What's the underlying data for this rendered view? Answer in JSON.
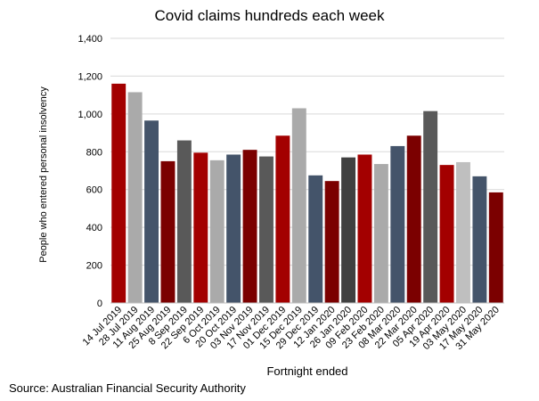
{
  "chart_data": {
    "type": "bar",
    "title": "Covid claims hundreds each week",
    "xlabel": "Fortnight ended",
    "ylabel": "People who entered personal insolvency",
    "ylim": [
      0,
      1400
    ],
    "yticks": [
      "0",
      "200",
      "400",
      "600",
      "800",
      "1,000",
      "1,200",
      "1,400"
    ],
    "grid": true,
    "categories": [
      "14 Jul 2019",
      "28 Jul 2019",
      "11 Aug 2019",
      "25 Aug 2019",
      "8 Sep 2019",
      "22 Sep 2019",
      "6 Oct 2019",
      "20 Oct 2019",
      "03 Nov 2019",
      "17 Nov 2019",
      "01 Dec 2019",
      "15 Dec 2019",
      "29 Dec 2019",
      "12 Jan 2020",
      "26 Jan 2020",
      "09 Feb 2020",
      "23 Feb 2020",
      "08 Mar 2020",
      "22 Mar 2020",
      "05 Apr 2020",
      "19 Apr 2020",
      "03 May 2020",
      "17 May 2020",
      "31 May 2020"
    ],
    "values": [
      1160,
      1115,
      965,
      750,
      860,
      795,
      755,
      785,
      810,
      775,
      885,
      1030,
      675,
      645,
      770,
      785,
      735,
      830,
      885,
      1015,
      730,
      745,
      670,
      585
    ],
    "colors": [
      "#a30000",
      "#aaaaaa",
      "#44546a",
      "#7b0000",
      "#595959",
      "#a30000",
      "#aaaaaa",
      "#44546a",
      "#7b0000",
      "#595959",
      "#a30000",
      "#aaaaaa",
      "#44546a",
      "#7b0000",
      "#404040",
      "#a30000",
      "#aaaaaa",
      "#44546a",
      "#7b0000",
      "#595959",
      "#a30000",
      "#bfbfbf",
      "#44546a",
      "#7b0000"
    ]
  },
  "source": "Source: Australian Financial Security Authority"
}
